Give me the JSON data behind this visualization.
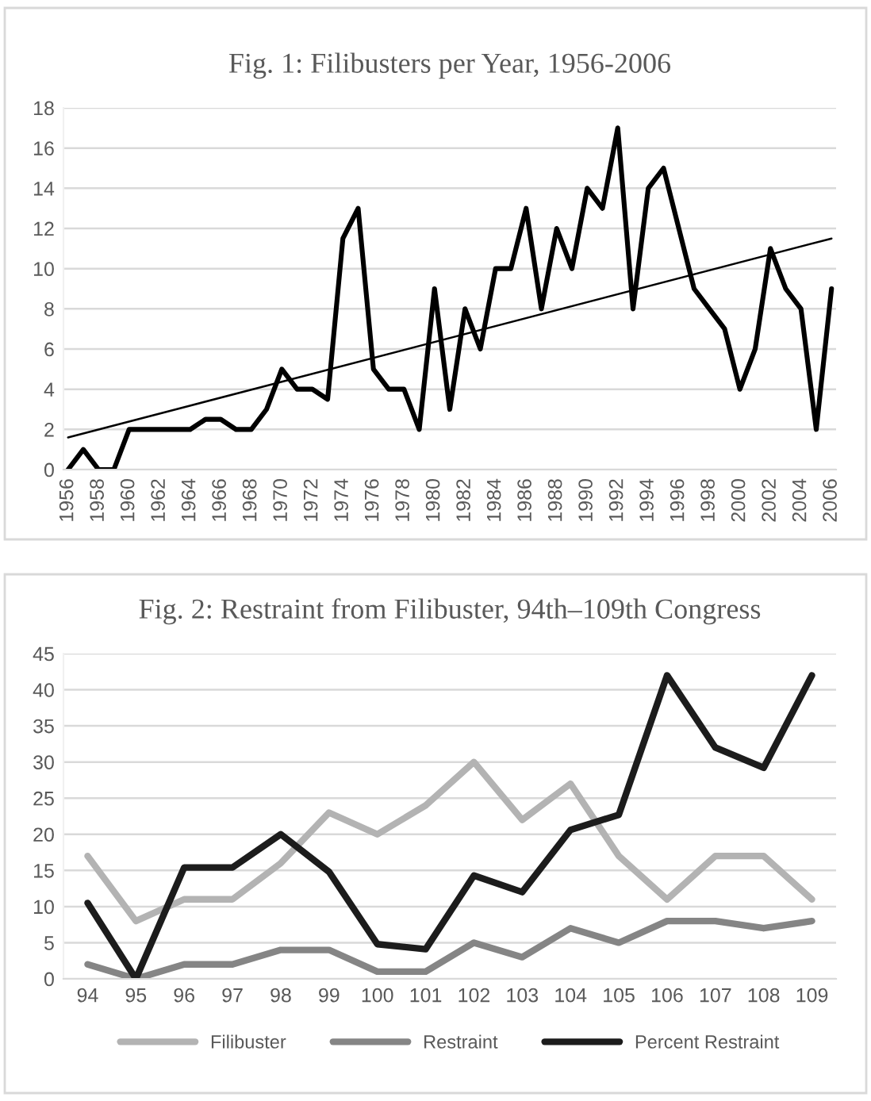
{
  "chart_data": [
    {
      "type": "line",
      "title": "Fig. 1: Filibusters per Year, 1956-2006",
      "x": [
        1956,
        1957,
        1958,
        1959,
        1960,
        1961,
        1962,
        1963,
        1964,
        1965,
        1966,
        1967,
        1968,
        1969,
        1970,
        1971,
        1972,
        1973,
        1974,
        1975,
        1976,
        1977,
        1978,
        1979,
        1980,
        1981,
        1982,
        1983,
        1984,
        1985,
        1986,
        1987,
        1988,
        1989,
        1990,
        1991,
        1992,
        1993,
        1994,
        1995,
        1996,
        1997,
        1998,
        1999,
        2000,
        2001,
        2002,
        2003,
        2004,
        2005,
        2006
      ],
      "xlim": [
        1955.7,
        2006.3
      ],
      "xticks": [
        1956,
        1958,
        1960,
        1962,
        1964,
        1966,
        1968,
        1970,
        1972,
        1974,
        1976,
        1978,
        1980,
        1982,
        1984,
        1986,
        1988,
        1990,
        1992,
        1994,
        1996,
        1998,
        2000,
        2002,
        2004,
        2006
      ],
      "series": [
        {
          "color": "#000000",
          "values": [
            0,
            1,
            0,
            0,
            2,
            2,
            2,
            2,
            2,
            2.5,
            2.5,
            2,
            2,
            3,
            5,
            4,
            4,
            3.5,
            11.5,
            13,
            5,
            4,
            4,
            2,
            9,
            3,
            8,
            6,
            10,
            10,
            13,
            8,
            12,
            10,
            14,
            13,
            17,
            8,
            14,
            15,
            12,
            9,
            8,
            7,
            4,
            6,
            11,
            9,
            8,
            2,
            9
          ]
        },
        {
          "type": "line",
          "color": "#000000",
          "x": [
            1956,
            2006
          ],
          "values": [
            1.6,
            11.5
          ]
        }
      ],
      "ylim": [
        0,
        18
      ],
      "yticks": [
        0,
        2,
        4,
        6,
        8,
        10,
        12,
        14,
        16,
        18
      ],
      "grid": "y"
    },
    {
      "type": "line",
      "title": "Fig. 2: Restraint from Filibuster, 94th–109th Congress",
      "categories": [
        "94",
        "95",
        "96",
        "97",
        "98",
        "99",
        "100",
        "101",
        "102",
        "103",
        "104",
        "105",
        "106",
        "107",
        "108",
        "109"
      ],
      "series": [
        {
          "name": "Filibuster",
          "color": "#b3b3b3",
          "values": [
            17,
            8,
            11,
            11,
            16,
            23,
            20,
            24,
            30,
            22,
            27,
            17,
            11,
            17,
            17,
            11
          ]
        },
        {
          "name": "Restraint",
          "color": "#858585",
          "values": [
            2,
            0,
            2,
            2,
            4,
            4,
            1,
            1,
            5,
            3,
            7,
            5,
            8,
            8,
            7,
            8
          ]
        },
        {
          "name": "Percent Restraint",
          "color": "#1c1c1c",
          "values": [
            10.5,
            0,
            15.4,
            15.4,
            20,
            14.8,
            4.8,
            4.1,
            14.3,
            12,
            20.6,
            22.7,
            42,
            32,
            29.2,
            42
          ]
        }
      ],
      "ylim": [
        0,
        45
      ],
      "yticks": [
        0,
        5,
        10,
        15,
        20,
        25,
        30,
        35,
        40,
        45
      ],
      "grid": "y",
      "legend": "bottom"
    }
  ]
}
